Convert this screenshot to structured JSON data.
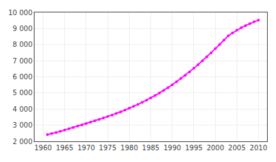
{
  "chart_data": {
    "type": "line",
    "x": [
      1961,
      1962,
      1963,
      1964,
      1965,
      1966,
      1967,
      1968,
      1969,
      1970,
      1971,
      1972,
      1973,
      1974,
      1975,
      1976,
      1977,
      1978,
      1979,
      1980,
      1981,
      1982,
      1983,
      1984,
      1985,
      1986,
      1987,
      1988,
      1989,
      1990,
      1991,
      1992,
      1993,
      1994,
      1995,
      1996,
      1997,
      1998,
      1999,
      2000,
      2001,
      2002,
      2003,
      2004,
      2005,
      2006,
      2007,
      2008,
      2009,
      2010
    ],
    "values": [
      2420,
      2480,
      2550,
      2620,
      2700,
      2780,
      2860,
      2940,
      3020,
      3100,
      3185,
      3270,
      3360,
      3450,
      3540,
      3630,
      3730,
      3830,
      3940,
      4050,
      4170,
      4290,
      4420,
      4550,
      4690,
      4840,
      5000,
      5160,
      5330,
      5510,
      5700,
      5900,
      6100,
      6310,
      6530,
      6760,
      7000,
      7240,
      7490,
      7750,
      8010,
      8280,
      8550,
      8730,
      8900,
      9050,
      9180,
      9300,
      9420,
      9520
    ],
    "color": "#ff00ff",
    "marker": "circle",
    "xlim": [
      1958,
      2012
    ],
    "ylim": [
      2000,
      10000
    ],
    "xticks": [
      1960,
      1965,
      1970,
      1975,
      1980,
      1985,
      1990,
      1995,
      2000,
      2005,
      2010
    ],
    "yticks": [
      {
        "value": 2000,
        "label": "2 000"
      },
      {
        "value": 3000,
        "label": "3 000"
      },
      {
        "value": 4000,
        "label": "4 000"
      },
      {
        "value": 5000,
        "label": "5 000"
      },
      {
        "value": 6000,
        "label": "6 000"
      },
      {
        "value": 7000,
        "label": "7 000"
      },
      {
        "value": 8000,
        "label": "8 000"
      },
      {
        "value": 9000,
        "label": "9 000"
      },
      {
        "value": 10000,
        "label": "10 000"
      }
    ],
    "grid": true
  }
}
